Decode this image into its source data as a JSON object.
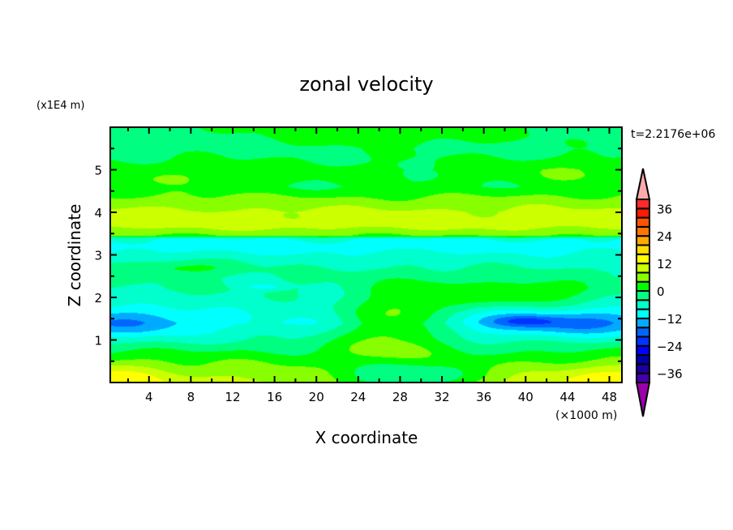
{
  "chart_data": {
    "type": "heatmap",
    "subtype": "filled-contour",
    "title": "zonal velocity",
    "xlabel": "X coordinate",
    "ylabel": "Z coordinate",
    "x_unit_label": "(×1000 m)",
    "y_unit_label": "(x1E4 m)",
    "time_label": "t=2.2176e+06",
    "xlim": [
      0.3,
      49.2
    ],
    "ylim": [
      0,
      6
    ],
    "x_ticks": [
      4,
      8,
      12,
      16,
      20,
      24,
      28,
      32,
      36,
      40,
      44,
      48
    ],
    "x_tick_labels": [
      "4",
      "8",
      "12",
      "16",
      "20",
      "24",
      "28",
      "32",
      "36",
      "40",
      "44",
      "48"
    ],
    "y_ticks": [
      1,
      2,
      3,
      4,
      5
    ],
    "y_tick_labels": [
      "1",
      "2",
      "3",
      "4",
      "5"
    ],
    "colorbar": {
      "levels": [
        -40,
        -36,
        -32,
        -28,
        -24,
        -20,
        -16,
        -12,
        -8,
        -4,
        0,
        4,
        8,
        12,
        16,
        20,
        24,
        28,
        32,
        36,
        40
      ],
      "tick_values": [
        36,
        24,
        12,
        0,
        -12,
        -24,
        -36
      ],
      "tick_labels": [
        "36",
        "24",
        "12",
        "0",
        "−12",
        "−24",
        "−36"
      ],
      "colors": [
        "#4400aa",
        "#1a0099",
        "#0000aa",
        "#0000ff",
        "#0033ff",
        "#0066ff",
        "#00aaff",
        "#00ffff",
        "#00ffcc",
        "#00ff80",
        "#00ff00",
        "#88ff00",
        "#ccff00",
        "#ffff00",
        "#ffdd00",
        "#ffaa00",
        "#ff7700",
        "#ff5500",
        "#ff1a00",
        "#ff2a2a"
      ],
      "under_color": "#9900aa",
      "over_color": "#ffaaaa",
      "extend": "both"
    },
    "field_description_approx": {
      "vertical_profile_z": [
        0,
        0.3,
        0.6,
        1.0,
        1.4,
        1.8,
        2.2,
        2.6,
        2.9,
        3.2,
        3.38,
        3.45,
        3.7,
        4.0,
        4.3,
        4.6,
        5.0,
        5.5,
        6.0
      ],
      "vertical_profile_value": [
        10,
        6,
        2,
        -4,
        -8,
        -6,
        -4,
        -4,
        -6,
        -10,
        -8,
        4,
        10,
        9,
        5,
        0,
        1,
        -2,
        -1
      ],
      "anomalies": [
        {
          "x": 2,
          "z": 1.4,
          "sx": 5,
          "sz": 0.25,
          "amp": -8
        },
        {
          "x": 44,
          "z": 1.4,
          "sx": 7,
          "sz": 0.22,
          "amp": -10
        },
        {
          "x": 40,
          "z": 1.45,
          "sx": 2,
          "sz": 0.08,
          "amp": -6
        },
        {
          "x": 27,
          "z": 1.2,
          "sx": 3.5,
          "sz": 0.6,
          "amp": 10
        },
        {
          "x": 30,
          "z": 1.9,
          "sx": 3,
          "sz": 0.4,
          "amp": 6
        },
        {
          "x": 40,
          "z": 2.1,
          "sx": 5,
          "sz": 0.25,
          "amp": 8
        },
        {
          "x": 28,
          "z": 0.1,
          "sx": 5,
          "sz": 0.3,
          "amp": -14
        },
        {
          "x": 0,
          "z": 0.15,
          "sx": 4,
          "sz": 0.25,
          "amp": 6
        },
        {
          "x": 50,
          "z": 0.15,
          "sx": 5,
          "sz": 0.25,
          "amp": 6
        },
        {
          "x": 27,
          "z": 5.9,
          "sx": 9,
          "sz": 0.3,
          "amp": 4
        },
        {
          "x": 46,
          "z": 4.9,
          "sx": 6,
          "sz": 0.3,
          "amp": 3
        },
        {
          "x": 5,
          "z": 4.8,
          "sx": 7,
          "sz": 0.25,
          "amp": 3
        },
        {
          "x": 7,
          "z": 2.7,
          "sx": 4,
          "sz": 0.12,
          "amp": 6
        },
        {
          "x": 15,
          "z": 2.25,
          "sx": 1.2,
          "sz": 0.05,
          "amp": -6
        }
      ]
    }
  }
}
